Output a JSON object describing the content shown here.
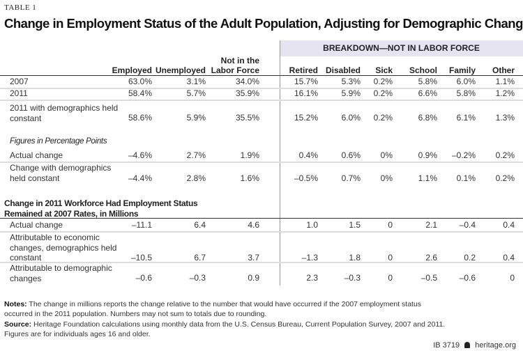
{
  "table_label": "TABLE 1",
  "title": "Change in Employment Status of the Adult Population, Adjusting for Demographic Changes",
  "breakdown_header": "BREAKDOWN—NOT IN LABOR FORCE",
  "columns": [
    "Employed",
    "Unemployed",
    "Not in the Labor Force",
    "Retired",
    "Disabled",
    "Sick",
    "School",
    "Family",
    "Other"
  ],
  "rows_top": [
    {
      "label": "2007",
      "values": [
        "63.0%",
        "3.1%",
        "34.0%",
        "15.7%",
        "5.3%",
        "0.2%",
        "5.8%",
        "6.0%",
        "1.1%"
      ]
    },
    {
      "label": "2011",
      "values": [
        "58.4%",
        "5.7%",
        "35.9%",
        "16.1%",
        "5.9%",
        "0.2%",
        "6.6%",
        "5.8%",
        "1.2%"
      ]
    },
    {
      "label": "2011 with demographics held constant",
      "values": [
        "58.6%",
        "5.9%",
        "35.5%",
        "15.2%",
        "6.0%",
        "0.2%",
        "6.8%",
        "6.1%",
        "1.3%"
      ]
    }
  ],
  "points_heading": "Figures in Percentage Points",
  "rows_points": [
    {
      "label": "Actual change",
      "values": [
        "–4.6%",
        "2.7%",
        "1.9%",
        "0.4%",
        "0.6%",
        "0%",
        "0.9%",
        "–0.2%",
        "0.2%"
      ]
    },
    {
      "label": "Change with demographics held constant",
      "values": [
        "–4.4%",
        "2.8%",
        "1.6%",
        "–0.5%",
        "0.7%",
        "0%",
        "1.1%",
        "0.1%",
        "0.2%"
      ]
    }
  ],
  "millions_heading": "Change in 2011 Workforce Had Employment Status Remained at 2007 Rates, in Millions",
  "rows_millions": [
    {
      "label": "Actual change",
      "values": [
        "–11.1",
        "6.4",
        "4.6",
        "1.0",
        "1.5",
        "0",
        "2.1",
        "–0.4",
        "0.4"
      ]
    },
    {
      "label": "Attributable to economic changes, demographics held constant",
      "values": [
        "–10.5",
        "6.7",
        "3.7",
        "–1.3",
        "1.8",
        "0",
        "2.6",
        "0.2",
        "0.4"
      ]
    },
    {
      "label": "Attributable to demographic changes",
      "values": [
        "–0.6",
        "–0.3",
        "0.9",
        "2.3",
        "–0.3",
        "0",
        "–0.5",
        "–0.6",
        "0"
      ]
    }
  ],
  "notes": {
    "label": "Notes:",
    "text": "The change in millions reports the change relative to the number that would have occurred if the 2007 employment status occurred in the 2011 population. Numbers may not sum to totals due to rounding."
  },
  "source": {
    "label": "Source:",
    "text": "Heritage Foundation calculations using monthly data from the U.S. Census Bureau, Current Population Survey, 2007 and 2011. Figures are for individuals ages 16 and older."
  },
  "footer": {
    "id": "IB 3719",
    "site": "heritage.org",
    "icon": "liberty-bell-icon"
  },
  "colors": {
    "band": "#e6e4f1",
    "rule": "#dcdcdc"
  }
}
